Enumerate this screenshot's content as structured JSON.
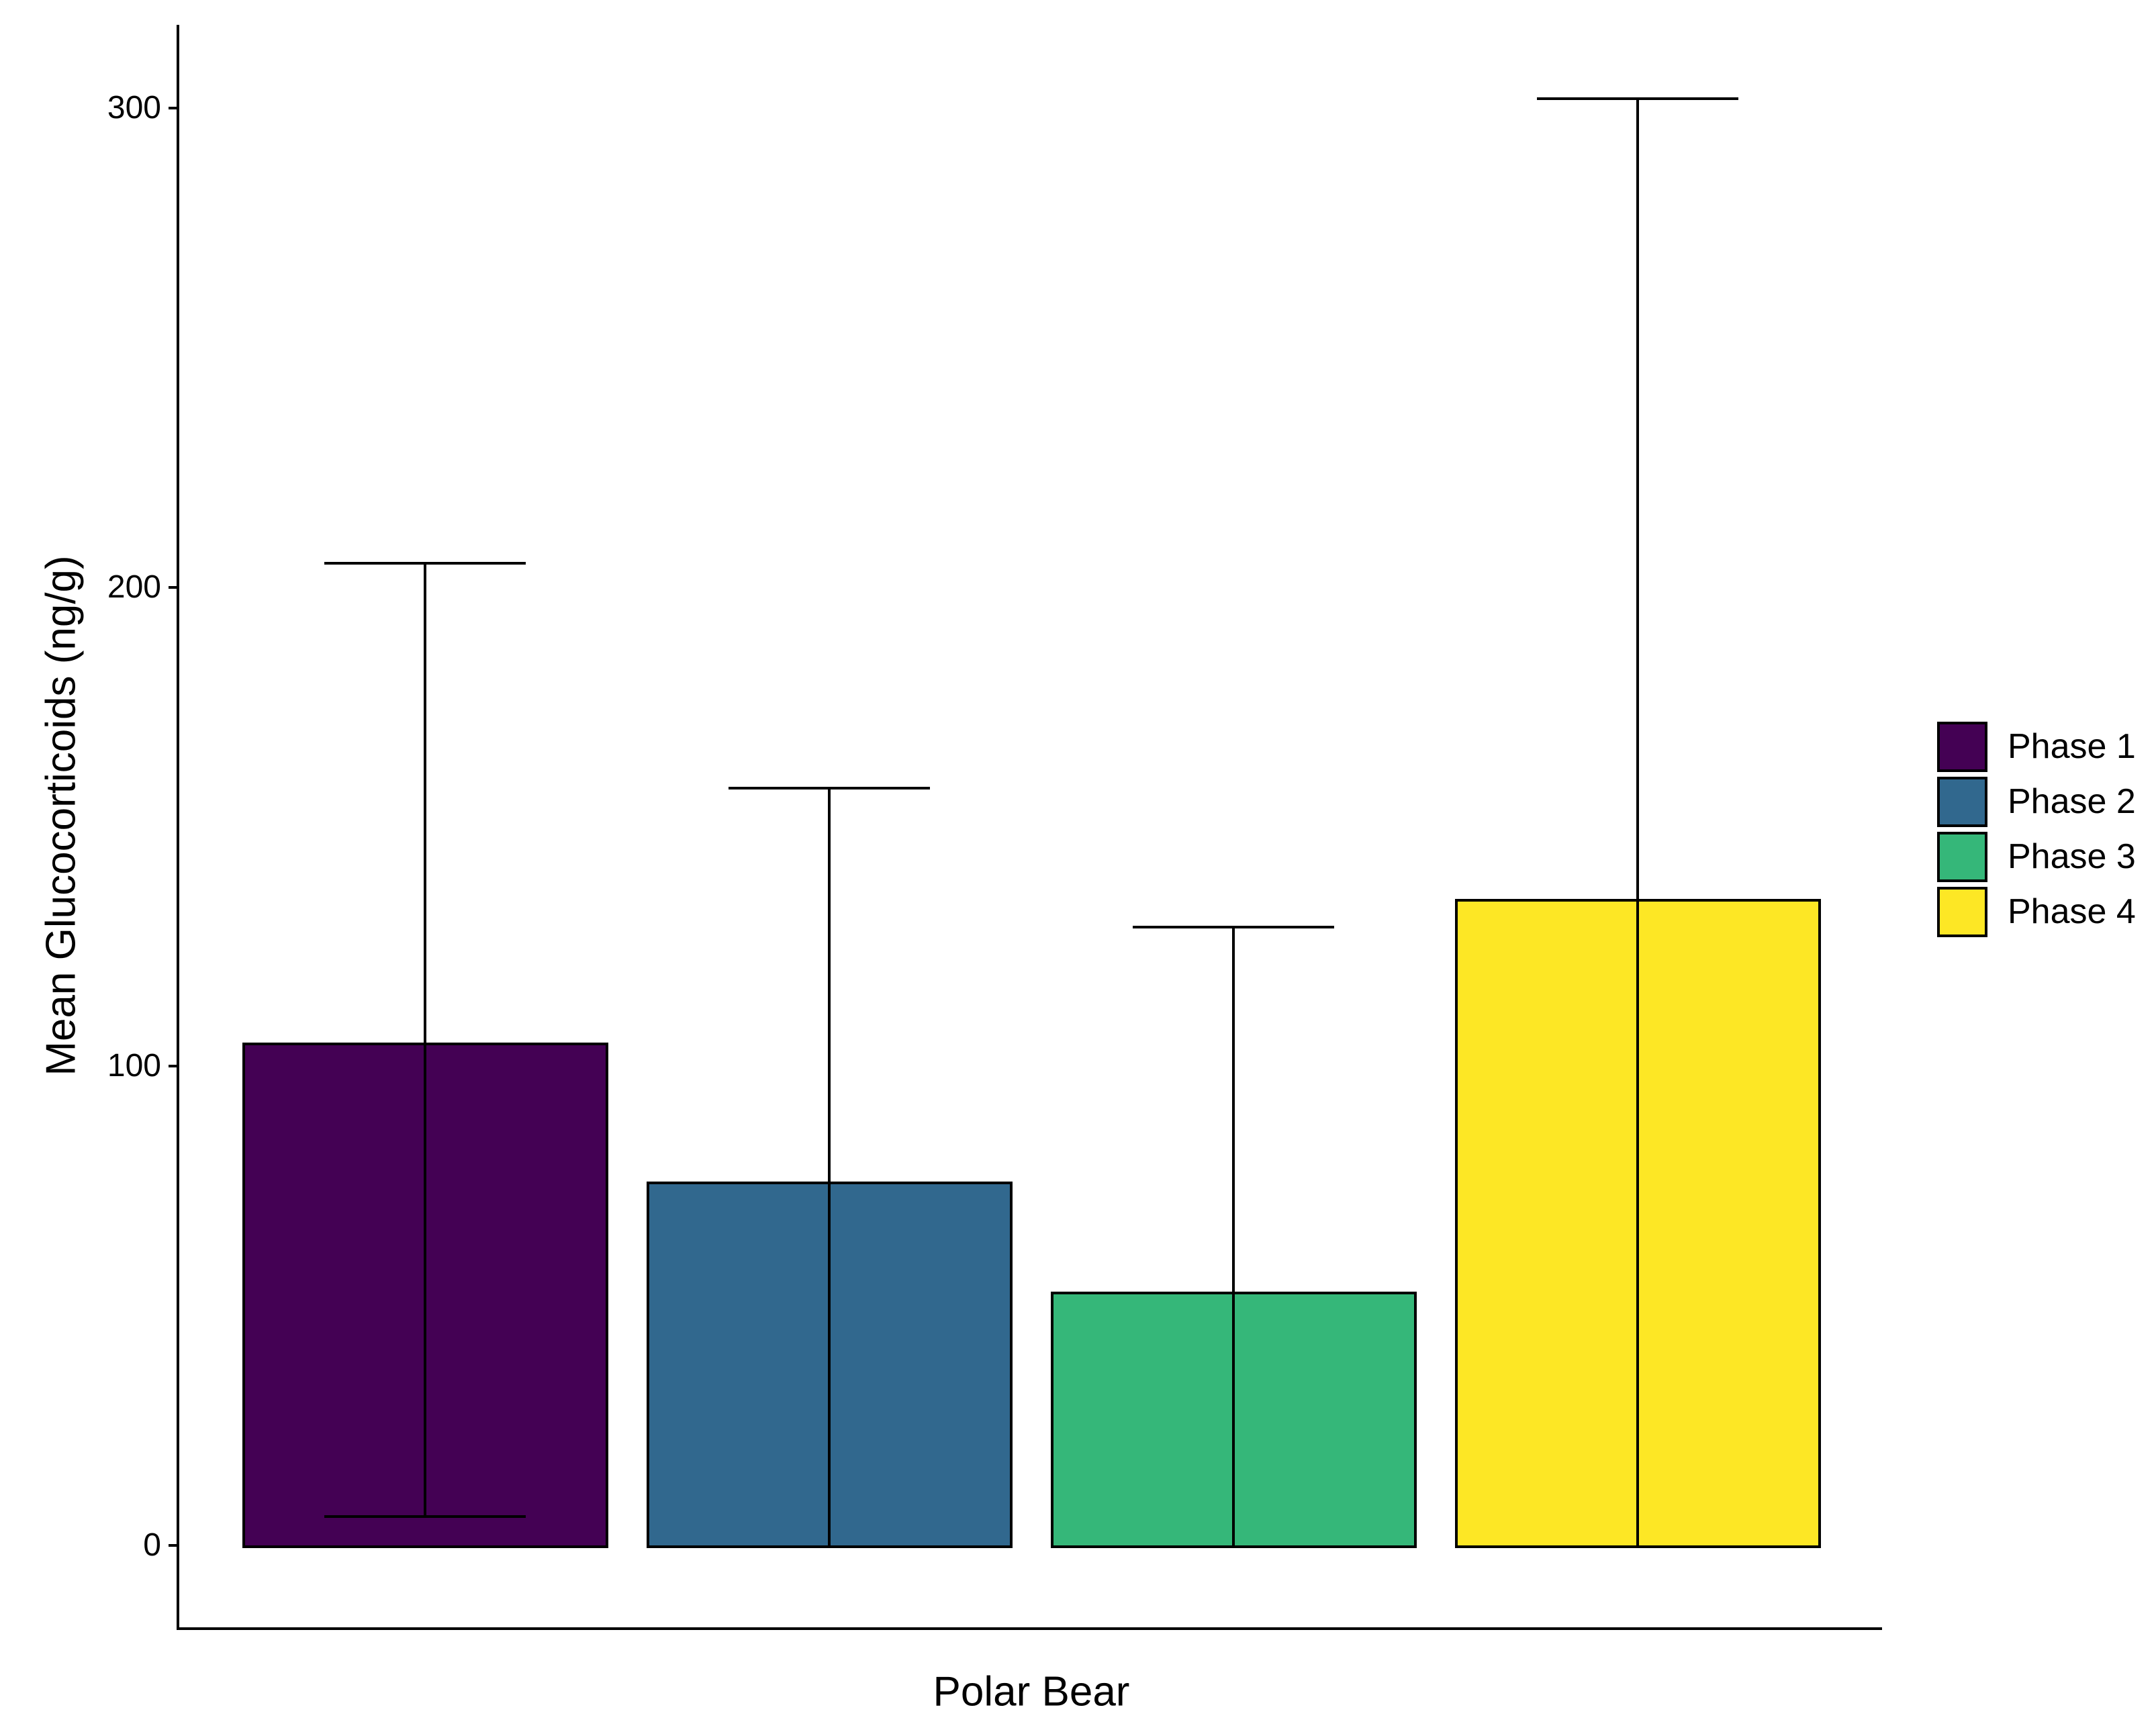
{
  "figure": {
    "background_color": "#ffffff",
    "axis_color": "#000000",
    "bar_border_color": "#000000",
    "text_color": "#000000"
  },
  "chart_data": {
    "type": "bar",
    "title": "",
    "xlabel": "Polar Bear",
    "ylabel": "Mean Glucocorticoids (ng/g)",
    "categories": [
      "Phase 1",
      "Phase 2",
      "Phase 3",
      "Phase 4"
    ],
    "values": [
      105,
      76,
      53,
      135
    ],
    "error_upper": [
      205,
      158,
      129,
      302
    ],
    "error_lower": [
      6,
      0,
      0,
      0
    ],
    "error_lower_cap_visible": [
      true,
      false,
      false,
      false
    ],
    "colors": [
      "#440154",
      "#31688E",
      "#35B779",
      "#FDE725"
    ],
    "yticks": [
      "0",
      "100",
      "200",
      "300"
    ],
    "ytick_values": [
      0,
      100,
      200,
      300
    ],
    "ylim": [
      -18,
      317
    ],
    "grid": false,
    "legend_position": "right",
    "legend_entries": [
      {
        "label": "Phase 1",
        "color": "#440154"
      },
      {
        "label": "Phase 2",
        "color": "#31688E"
      },
      {
        "label": "Phase 3",
        "color": "#35B779"
      },
      {
        "label": "Phase 4",
        "color": "#FDE725"
      }
    ]
  }
}
